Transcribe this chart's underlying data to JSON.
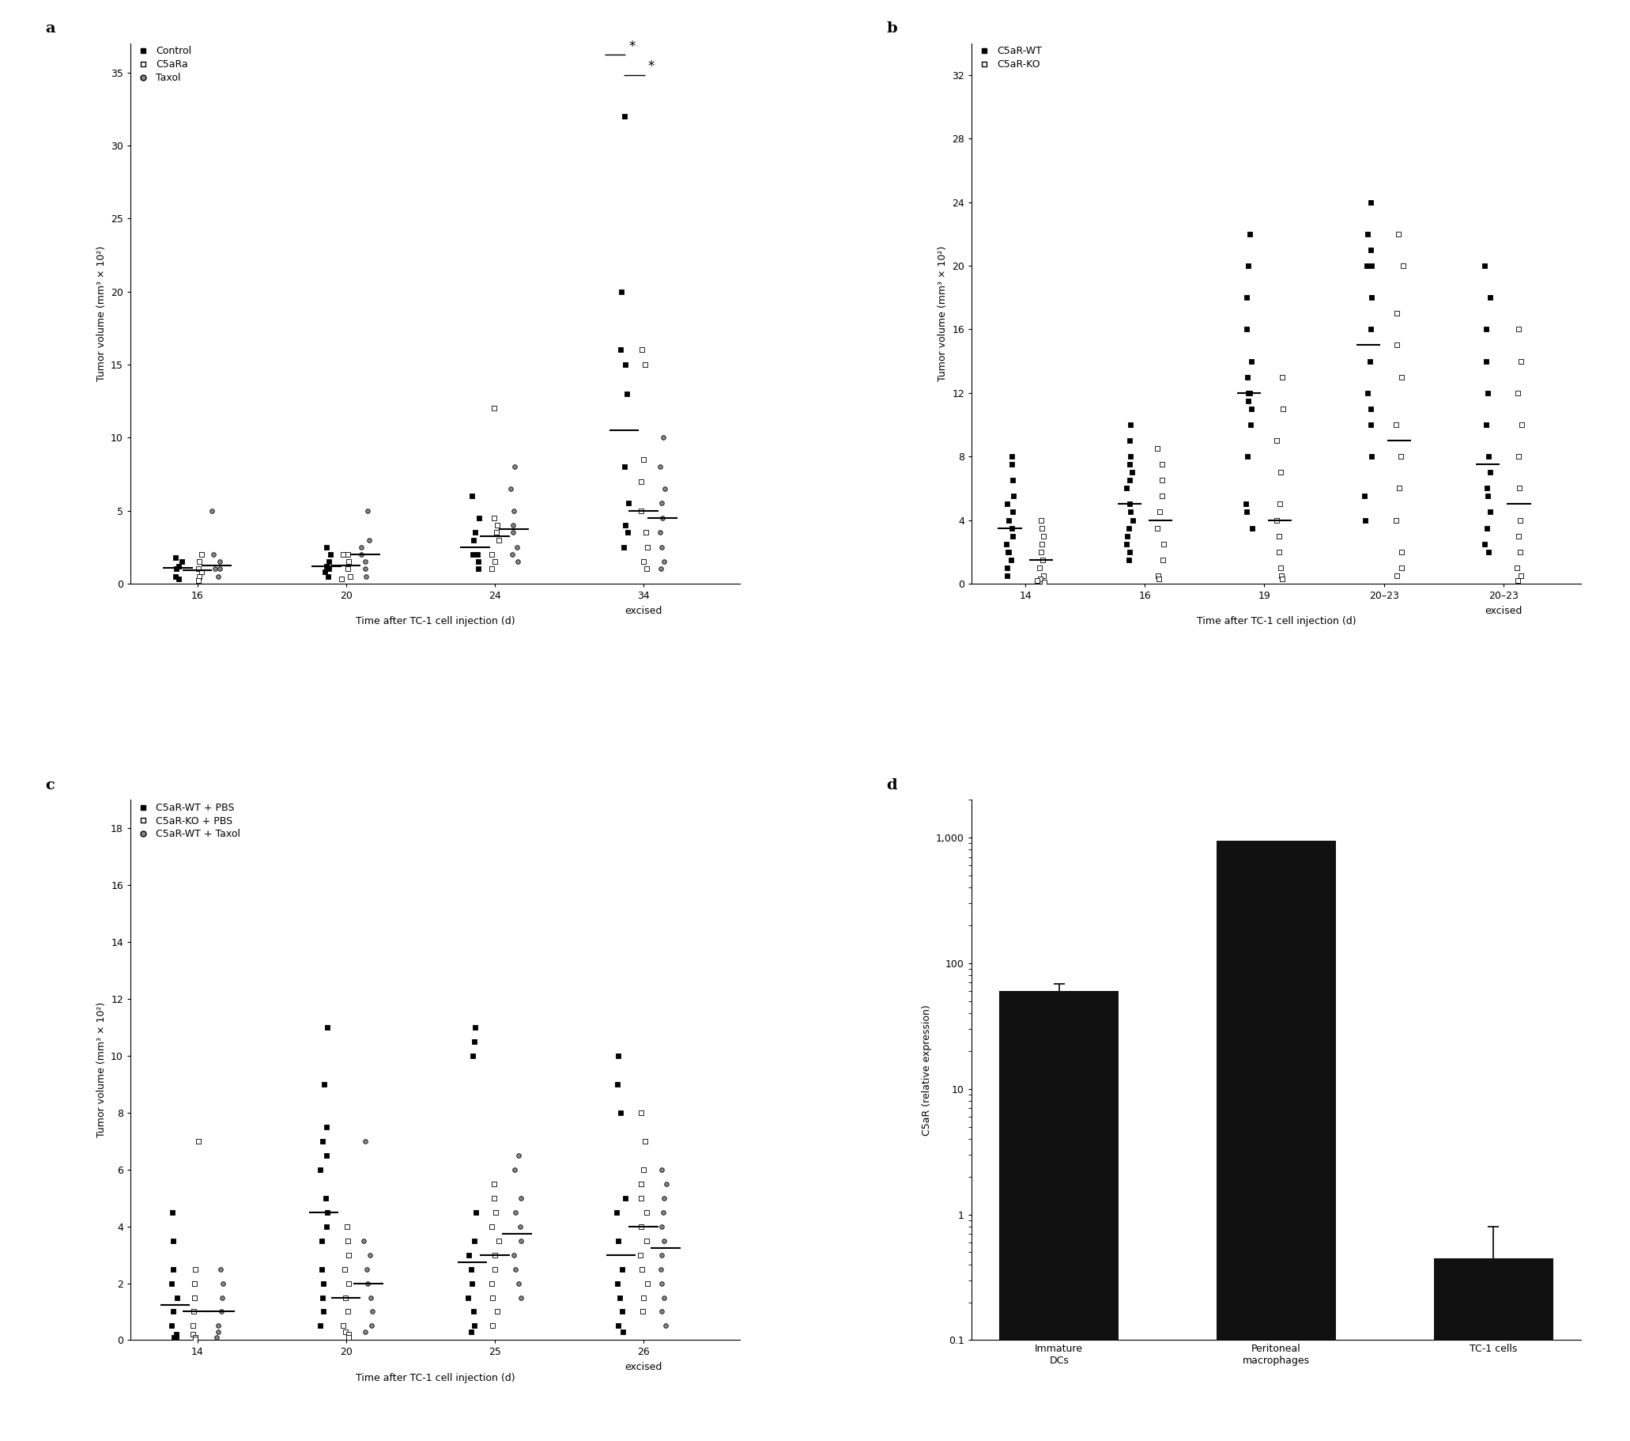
{
  "panel_a": {
    "title": "a",
    "xlabel": "Time after TC-1 cell injection (d)",
    "ylabel": "Tumor volume (mm³ × 10²)",
    "ylim": [
      0,
      37
    ],
    "yticks": [
      0,
      5,
      10,
      15,
      20,
      25,
      30,
      35
    ],
    "xtick_labels": [
      "16",
      "20",
      "24",
      "34"
    ],
    "legend": [
      "Control",
      "C5aRa",
      "Taxol"
    ],
    "control_data": {
      "1": [
        1.5,
        1.0,
        0.5,
        1.8,
        0.3,
        1.2
      ],
      "2": [
        2.0,
        1.5,
        0.5,
        1.0,
        2.5,
        0.8,
        1.2
      ],
      "3": [
        4.5,
        2.0,
        1.5,
        3.5,
        1.0,
        6.0,
        2.0,
        3.0
      ],
      "4": [
        32.0,
        20.0,
        16.0,
        15.0,
        13.0,
        8.0,
        5.5,
        4.0,
        3.5,
        2.5
      ]
    },
    "c5ara_data": {
      "1": [
        2.0,
        1.0,
        0.5,
        0.2,
        1.5,
        0.8
      ],
      "2": [
        2.0,
        0.5,
        1.0,
        1.5,
        2.0,
        0.3
      ],
      "3": [
        12.0,
        4.5,
        3.5,
        2.0,
        1.5,
        1.0,
        4.0,
        3.0
      ],
      "4": [
        16.0,
        15.0,
        8.5,
        7.0,
        5.0,
        3.5,
        1.5,
        1.0,
        2.5
      ]
    },
    "taxol_data": {
      "1": [
        5.0,
        2.0,
        1.0,
        0.5,
        1.5,
        1.0
      ],
      "2": [
        5.0,
        3.0,
        2.5,
        1.5,
        1.0,
        0.5,
        2.0
      ],
      "3": [
        8.0,
        6.5,
        5.0,
        3.5,
        2.5,
        1.5,
        4.0,
        2.0
      ],
      "4": [
        10.0,
        8.0,
        6.5,
        5.5,
        4.5,
        3.5,
        2.5,
        1.5,
        1.0
      ]
    }
  },
  "panel_b": {
    "title": "b",
    "xlabel": "Time after TC-1 cell injection (d)",
    "ylabel": "Tumor volume (mm³ × 10²)",
    "ylim": [
      0,
      34
    ],
    "yticks": [
      0,
      4,
      8,
      12,
      16,
      20,
      24,
      28,
      32
    ],
    "xtick_labels": [
      "14",
      "16",
      "19",
      "20–23",
      "20–23"
    ],
    "legend": [
      "C5aR-WT",
      "C5aR-KO"
    ],
    "wt_data": {
      "1": [
        8.0,
        7.5,
        6.5,
        5.5,
        5.0,
        4.5,
        4.0,
        3.5,
        3.0,
        2.5,
        2.0,
        2.0,
        1.5,
        1.0,
        0.5
      ],
      "2": [
        10.0,
        9.0,
        8.0,
        7.5,
        7.0,
        6.5,
        6.0,
        5.0,
        4.5,
        4.0,
        3.5,
        3.0,
        2.5,
        2.0,
        1.5
      ],
      "3": [
        22.0,
        20.0,
        18.0,
        16.0,
        14.0,
        13.0,
        12.0,
        12.0,
        11.5,
        11.0,
        10.0,
        8.0,
        5.0,
        4.5,
        3.5
      ],
      "4": [
        24.0,
        22.0,
        21.0,
        20.0,
        20.0,
        18.0,
        16.0,
        14.0,
        12.0,
        11.0,
        10.0,
        8.0,
        5.5,
        4.0
      ],
      "5": [
        20.0,
        18.0,
        16.0,
        14.0,
        12.0,
        10.0,
        8.0,
        7.0,
        6.0,
        5.5,
        4.5,
        3.5,
        2.5,
        2.0
      ]
    },
    "ko_data": {
      "1": [
        4.0,
        3.5,
        3.0,
        2.5,
        2.0,
        1.5,
        1.0,
        0.5,
        0.3,
        0.2,
        0.1
      ],
      "2": [
        8.5,
        7.5,
        6.5,
        5.5,
        4.5,
        3.5,
        2.5,
        1.5,
        0.5,
        0.3
      ],
      "3": [
        13.0,
        11.0,
        9.0,
        7.0,
        5.0,
        4.0,
        3.0,
        2.0,
        1.0,
        0.5,
        0.3
      ],
      "4": [
        22.0,
        20.0,
        17.0,
        15.0,
        13.0,
        10.0,
        8.0,
        6.0,
        4.0,
        2.0,
        1.0,
        0.5
      ],
      "5": [
        16.0,
        14.0,
        12.0,
        10.0,
        8.0,
        6.0,
        4.0,
        3.0,
        2.0,
        1.0,
        0.5,
        0.2
      ]
    }
  },
  "panel_c": {
    "title": "c",
    "xlabel": "Time after TC-1 cell injection (d)",
    "ylabel": "Tumor volume (mm³ × 10²)",
    "ylim": [
      0,
      19
    ],
    "yticks": [
      0,
      2,
      4,
      6,
      8,
      10,
      12,
      14,
      16,
      18
    ],
    "xtick_labels": [
      "14",
      "20",
      "25",
      "26"
    ],
    "legend": [
      "C5aR-WT + PBS",
      "C5aR-KO + PBS",
      "C5aR-WT + Taxol"
    ],
    "wt_pbs_data": {
      "1": [
        4.5,
        3.5,
        2.5,
        2.0,
        1.5,
        1.0,
        0.5,
        0.2,
        0.1,
        0.05
      ],
      "2": [
        11.0,
        9.0,
        7.5,
        7.0,
        6.5,
        6.0,
        5.0,
        4.5,
        4.0,
        3.5,
        2.5,
        2.0,
        1.5,
        1.0,
        0.5
      ],
      "3": [
        11.0,
        10.5,
        10.0,
        4.5,
        3.5,
        3.0,
        2.5,
        2.0,
        1.5,
        1.0,
        0.5,
        0.3
      ],
      "4": [
        10.0,
        9.0,
        8.0,
        5.0,
        4.5,
        3.5,
        2.5,
        2.0,
        1.5,
        1.0,
        0.5,
        0.3
      ]
    },
    "ko_pbs_data": {
      "1": [
        7.0,
        2.5,
        2.0,
        1.5,
        1.0,
        0.5,
        0.2,
        0.1,
        0.05
      ],
      "2": [
        4.0,
        3.5,
        3.0,
        2.5,
        2.0,
        1.5,
        1.0,
        0.5,
        0.3,
        0.2,
        0.1
      ],
      "3": [
        5.5,
        5.0,
        4.5,
        4.0,
        3.5,
        3.0,
        2.5,
        2.0,
        1.5,
        1.0,
        0.5
      ],
      "4": [
        8.0,
        7.0,
        6.0,
        5.5,
        5.0,
        4.5,
        4.0,
        3.5,
        3.0,
        2.5,
        2.0,
        1.5,
        1.0
      ]
    },
    "taxol_data": {
      "1": [
        2.5,
        2.0,
        1.5,
        1.0,
        0.5,
        0.3,
        0.1
      ],
      "2": [
        7.0,
        3.5,
        3.0,
        2.5,
        2.0,
        1.5,
        1.0,
        0.5,
        0.3
      ],
      "3": [
        6.5,
        6.0,
        5.0,
        4.5,
        4.0,
        3.5,
        3.0,
        2.5,
        2.0,
        1.5
      ],
      "4": [
        6.0,
        5.5,
        5.0,
        4.5,
        4.0,
        3.5,
        3.0,
        2.5,
        2.0,
        1.5,
        1.0,
        0.5
      ]
    }
  },
  "panel_d": {
    "title": "d",
    "ylabel": "C5aR (relative expression)",
    "categories": [
      "Immature\nDCs",
      "Peritoneal\nmacrophages",
      "TC-1 cells"
    ],
    "values": [
      60.0,
      950.0,
      0.45
    ],
    "errors": [
      8.0,
      0.0,
      0.35
    ],
    "bar_color": "#111111",
    "ylim": [
      0.1,
      2000
    ],
    "yticks": [
      0.1,
      1,
      10,
      100,
      1000
    ],
    "ytick_labels": [
      "0.1",
      "1",
      "10",
      "100",
      "1,000"
    ]
  },
  "bg_color": "#ffffff",
  "marker_size": 4,
  "line_width": 1.5,
  "font_size": 9,
  "label_font_size": 9,
  "title_font_size": 14
}
